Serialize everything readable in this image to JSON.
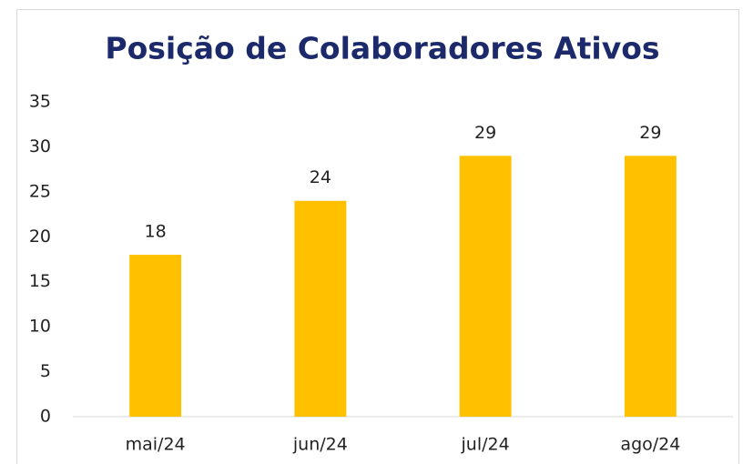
{
  "chart_data": {
    "type": "bar",
    "title": "Posição de Colaboradores Ativos",
    "categories": [
      "mai/24",
      "jun/24",
      "jul/24",
      "ago/24"
    ],
    "values": [
      18,
      24,
      29,
      29
    ],
    "color": "#ffc000",
    "ylim": [
      0,
      35
    ],
    "yticks": [
      0,
      5,
      10,
      15,
      20,
      25,
      30,
      35
    ],
    "grid": false
  }
}
